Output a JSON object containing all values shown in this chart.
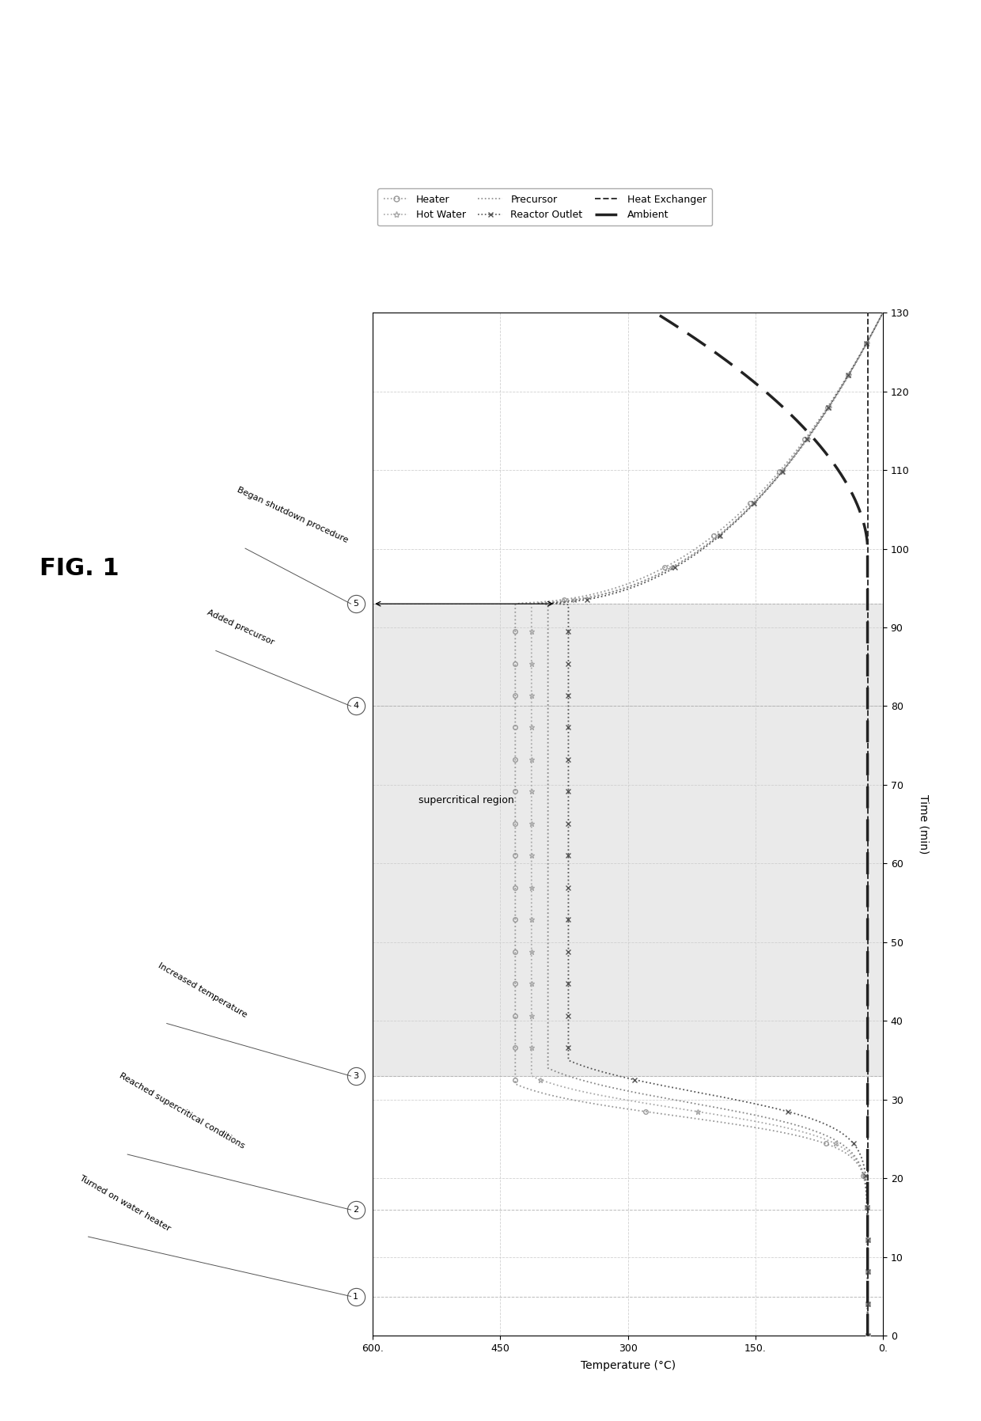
{
  "title": "FIG. 1",
  "xlabel_bottom": "Temperature (°C)",
  "ylabel_right": "Time (min)",
  "xlim": [
    600,
    0
  ],
  "ylim": [
    0,
    130
  ],
  "xticks": [
    600,
    450,
    300,
    150,
    0
  ],
  "xticklabels": [
    "600.",
    "450",
    "300",
    "150.",
    "0."
  ],
  "yticks": [
    0,
    10,
    20,
    30,
    40,
    50,
    60,
    70,
    80,
    90,
    100,
    110,
    120,
    130
  ],
  "supercritical_ymin": 33,
  "supercritical_ymax": 93,
  "event_times": [
    5,
    16,
    33,
    80,
    93
  ],
  "event_labels": [
    "1",
    "2",
    "3",
    "4",
    "5"
  ],
  "annotation_texts": [
    "Turned on water heater",
    "Reached supercritical conditions",
    "Increased temperature",
    "Added precursor",
    "Began shutdown procedure"
  ],
  "supercritical_label": "supercritical region",
  "background_color": "#ffffff",
  "grid_color": "#cccccc",
  "shading_color": "#dddddd",
  "shading_alpha": 0.6,
  "legend_entries": [
    {
      "label": "Heater",
      "color": "#999999",
      "linestyle": "dotted",
      "marker": "o",
      "markerfacecolor": "none"
    },
    {
      "label": "Hot Water",
      "color": "#aaaaaa",
      "linestyle": "dotted",
      "marker": "*",
      "markerfacecolor": "none"
    },
    {
      "label": "Precursor",
      "color": "#888888",
      "linestyle": "dotted",
      "marker": "none",
      "markerfacecolor": "none"
    },
    {
      "label": "Reactor Outlet",
      "color": "#555555",
      "linestyle": "dotted",
      "marker": "x",
      "markerfacecolor": "#555555"
    },
    {
      "label": "Heat Exchanger",
      "color": "#333333",
      "linestyle": "dashed",
      "marker": "none",
      "markerfacecolor": "none"
    },
    {
      "label": "Ambient",
      "color": "#222222",
      "linestyle": "solid",
      "marker": "none",
      "markerfacecolor": "none",
      "linewidth": 2.5,
      "dashes": [
        10,
        4
      ]
    }
  ]
}
